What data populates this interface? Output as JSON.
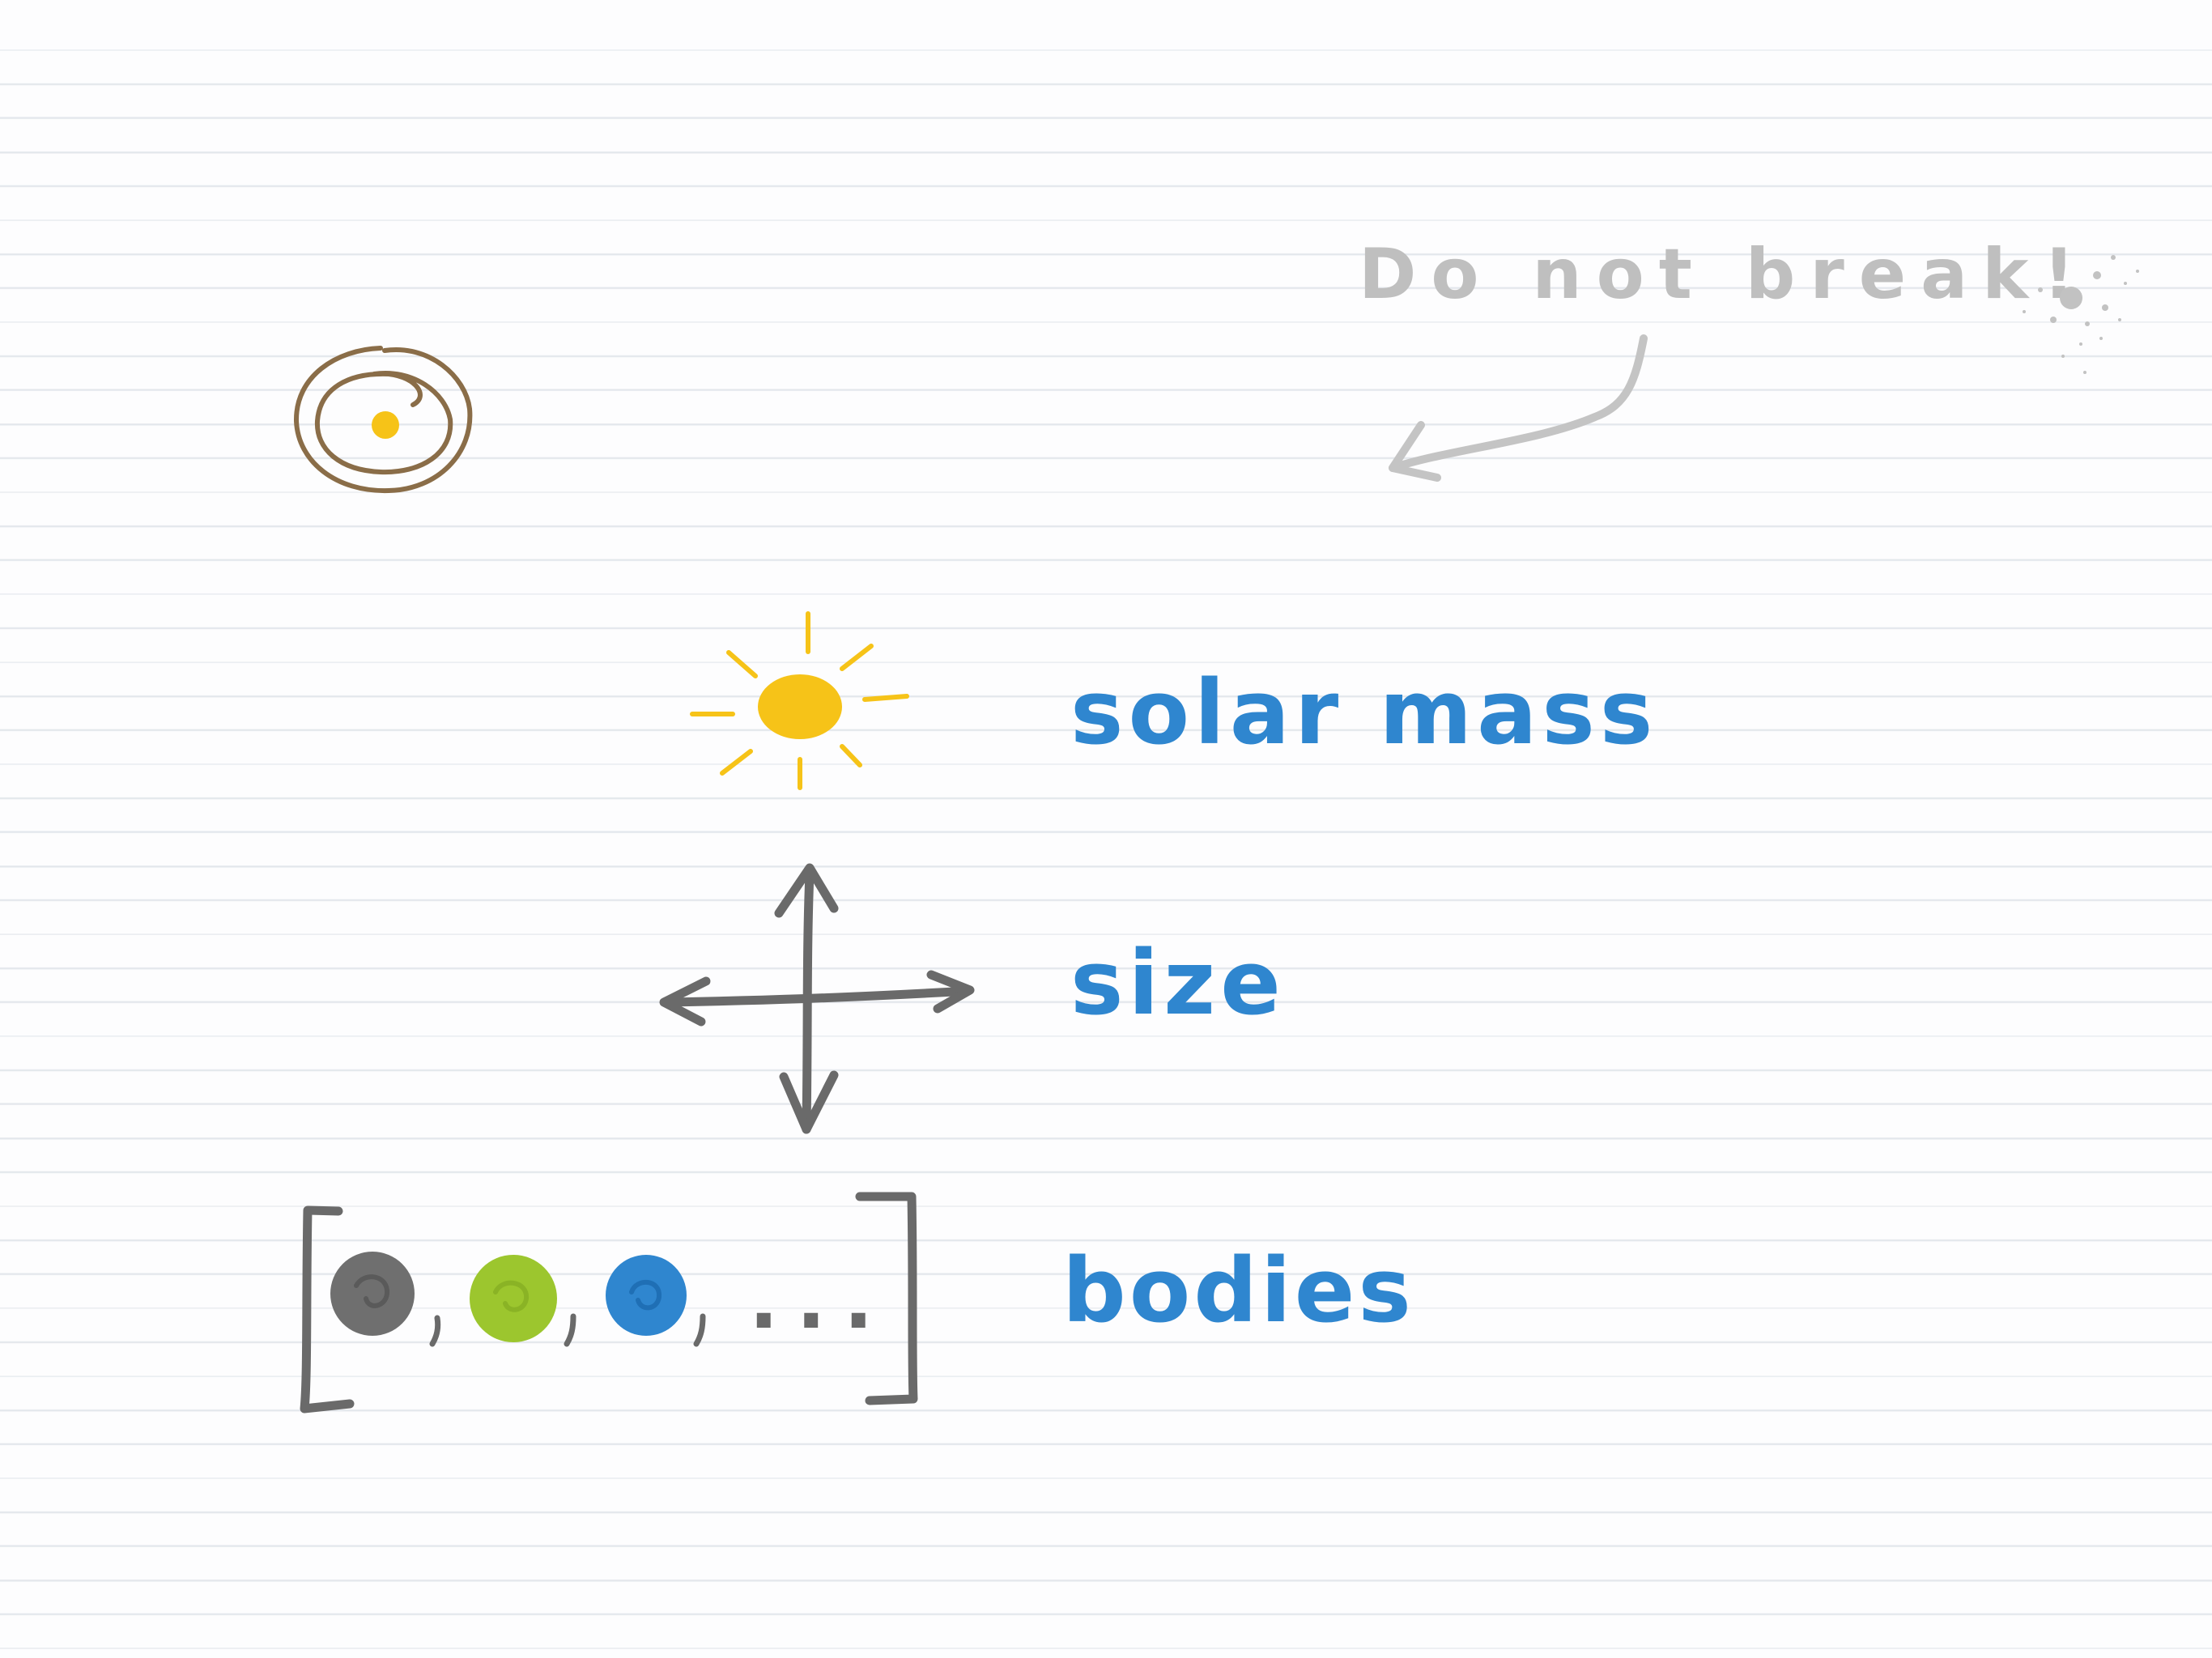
{
  "note": {
    "warning_text": "Do not break!"
  },
  "labels": {
    "solar_mass": "solar mass",
    "size": "size",
    "bodies": "bodies"
  },
  "bodies_list": {
    "ellipsis": "..."
  },
  "colors": {
    "background": "#fdfdfe",
    "ruled_line": "#e3e7ec",
    "sun_yellow": "#f6c318",
    "label_blue": "#2f86cf",
    "pencil_gray": "#bdbdbd",
    "marker_gray": "#6a6a6a",
    "orbit_brown": "#8a6d48",
    "body_green": "#9cc62e",
    "body_blue": "#2f86cf"
  },
  "icons": [
    "planet-system-icon",
    "sun-icon",
    "size-arrows-icon",
    "curved-arrow-icon",
    "ink-splatter-icon"
  ]
}
